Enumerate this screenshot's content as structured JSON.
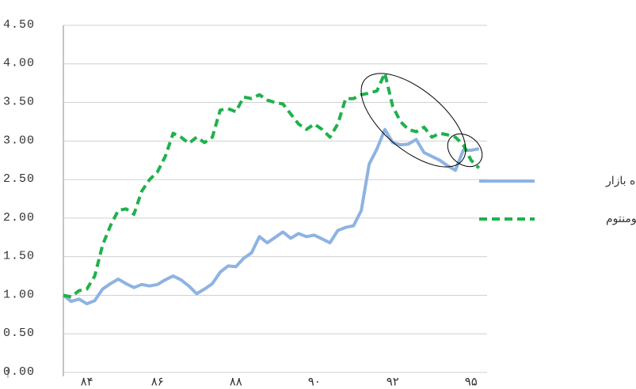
{
  "chart_data": {
    "type": "line",
    "categories": [
      null,
      null,
      null,
      "۸۴",
      null,
      null,
      null,
      null,
      null,
      null,
      null,
      null,
      "۸۶",
      null,
      null,
      null,
      null,
      null,
      null,
      null,
      null,
      null,
      "۸۸",
      null,
      null,
      null,
      null,
      null,
      null,
      null,
      null,
      null,
      "۹۰",
      null,
      null,
      null,
      null,
      null,
      null,
      null,
      null,
      null,
      "۹۲",
      null,
      null,
      null,
      null,
      null,
      null,
      null,
      null,
      null,
      "۹۵",
      null
    ],
    "series": [
      {
        "name": "بازده بازار",
        "color": "#8db3e2",
        "dashed": false,
        "values": [
          1.0,
          0.92,
          0.95,
          0.89,
          0.93,
          1.08,
          1.15,
          1.21,
          1.15,
          1.1,
          1.14,
          1.12,
          1.14,
          1.2,
          1.25,
          1.2,
          1.12,
          1.02,
          1.08,
          1.15,
          1.3,
          1.38,
          1.37,
          1.48,
          1.55,
          1.76,
          1.68,
          1.75,
          1.82,
          1.74,
          1.8,
          1.76,
          1.78,
          1.73,
          1.68,
          1.84,
          1.88,
          1.9,
          2.1,
          2.7,
          2.9,
          3.15,
          2.98,
          2.95,
          2.96,
          3.02,
          2.85,
          2.8,
          2.75,
          2.68,
          2.62,
          2.88,
          2.88,
          2.9
        ]
      },
      {
        "name": "بازده مومنتوم",
        "color": "#1fb14b",
        "dashed": true,
        "values": [
          1.0,
          0.98,
          1.06,
          1.08,
          1.25,
          1.65,
          1.9,
          2.1,
          2.12,
          2.05,
          2.35,
          2.5,
          2.6,
          2.8,
          3.1,
          3.05,
          2.97,
          3.05,
          2.98,
          3.05,
          3.4,
          3.42,
          3.38,
          3.57,
          3.55,
          3.6,
          3.53,
          3.5,
          3.48,
          3.35,
          3.22,
          3.15,
          3.22,
          3.15,
          3.05,
          3.22,
          3.55,
          3.55,
          3.6,
          3.62,
          3.65,
          3.88,
          3.45,
          3.25,
          3.15,
          3.12,
          3.18,
          3.05,
          3.1,
          3.08,
          3.05,
          2.95,
          2.75,
          2.65
        ]
      }
    ],
    "ylim": [
      0,
      4.5
    ],
    "yticks": [
      {
        "value": 0,
        "label": "0.00"
      },
      {
        "value": 0.5,
        "label": "0.50"
      },
      {
        "value": 1,
        "label": "1.00"
      },
      {
        "value": 1.5,
        "label": "1.50"
      },
      {
        "value": 2,
        "label": "2.00"
      },
      {
        "value": 2.5,
        "label": "2.50"
      },
      {
        "value": 3,
        "label": "3.00"
      },
      {
        "value": 3.5,
        "label": "3.50"
      },
      {
        "value": 4,
        "label": "4.00"
      },
      {
        "value": 4.5,
        "label": "4.50"
      }
    ],
    "grid": true,
    "legend": "right"
  }
}
